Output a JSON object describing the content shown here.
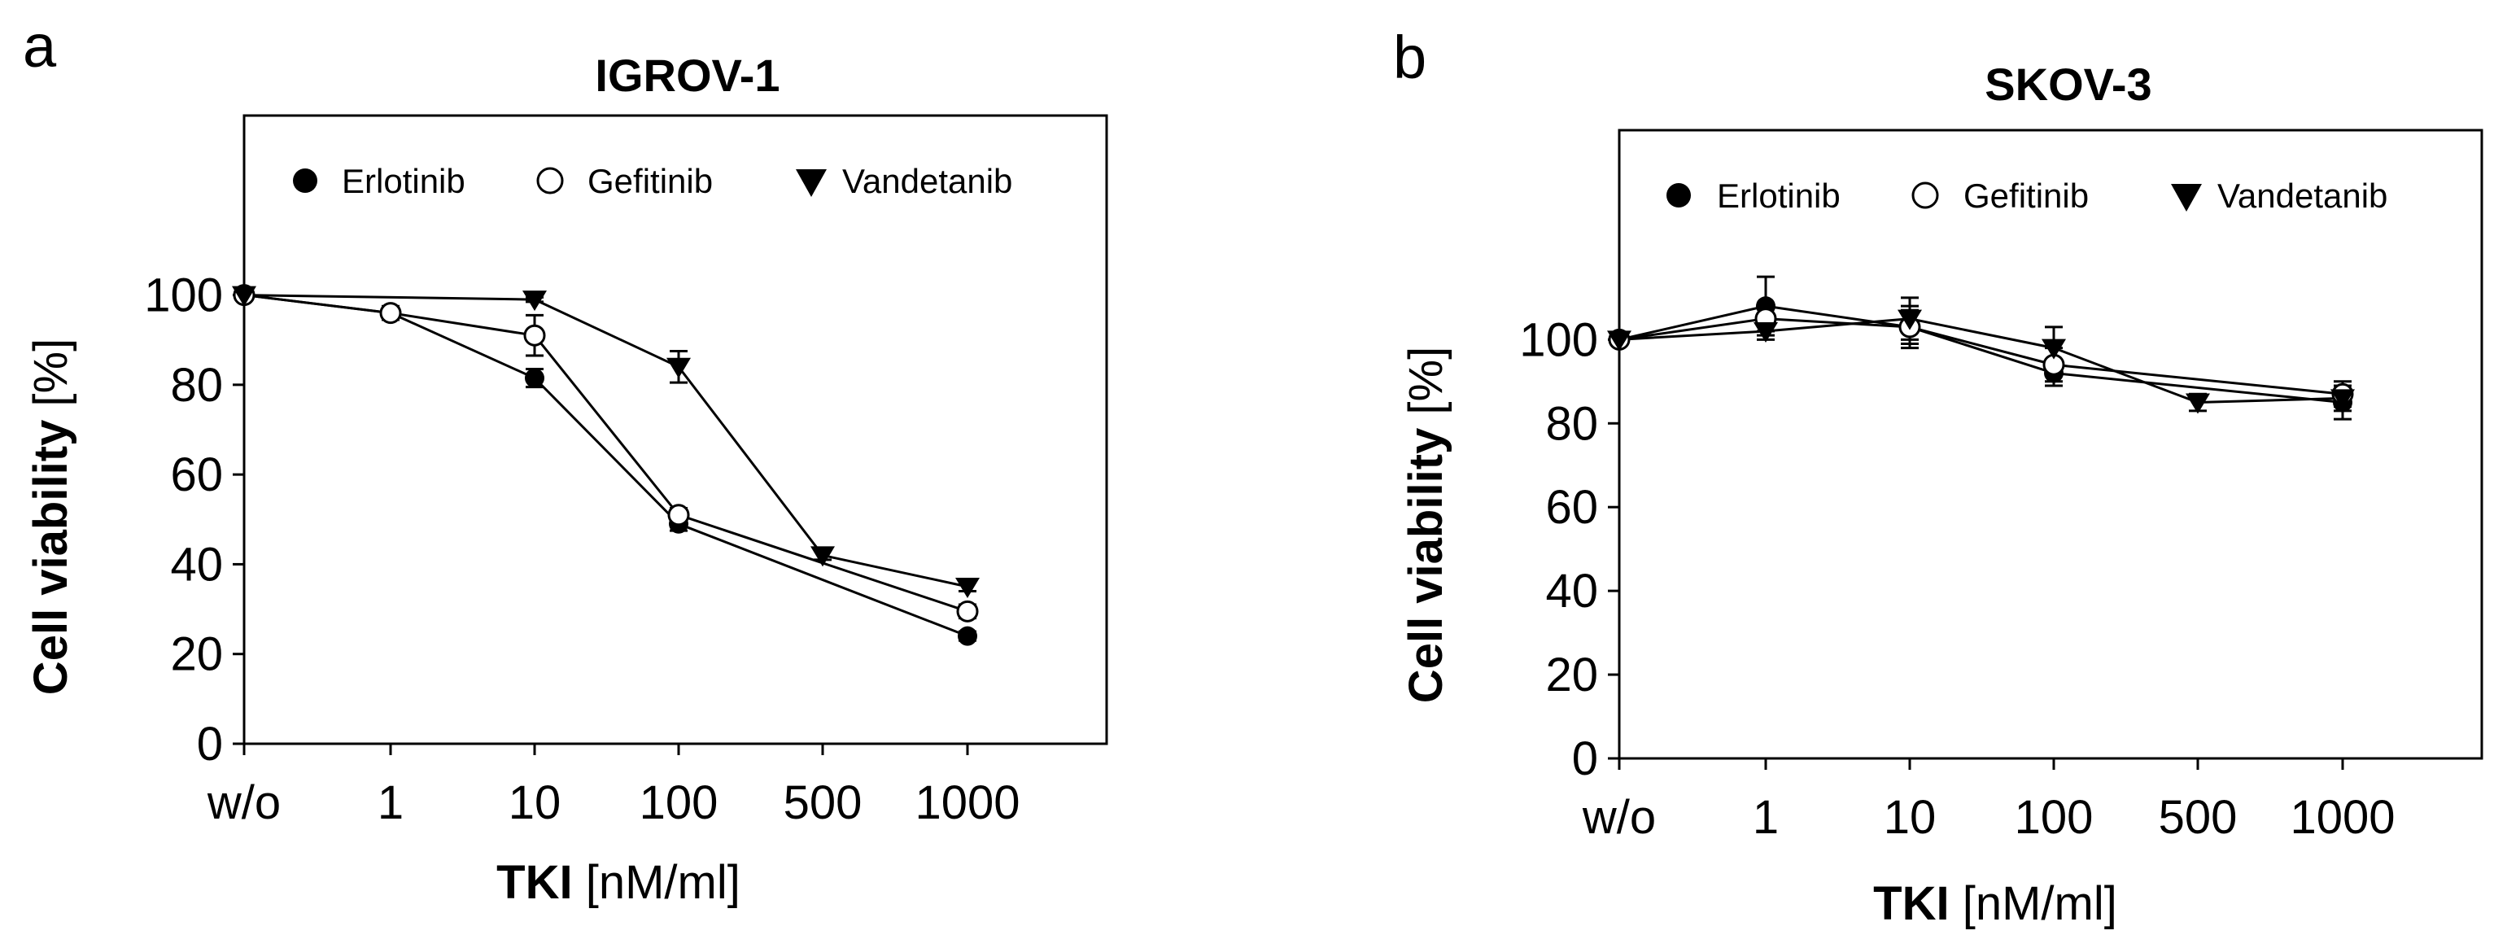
{
  "chart_data": [
    {
      "panel": "a",
      "type": "line",
      "title": "IGROV-1",
      "xlabel_bold": "TKI",
      "xlabel_rest": " [nM/ml]",
      "ylabel_bold": "Cell viability",
      "ylabel_rest": " [%]",
      "categories": [
        "w/o",
        "1",
        "10",
        "100",
        "500",
        "1000"
      ],
      "yticks": [
        0,
        20,
        40,
        60,
        80,
        100
      ],
      "ylim": [
        0,
        140
      ],
      "legend": "top",
      "series": [
        {
          "name": "Erlotinib",
          "marker": "filled-circle",
          "points": [
            [
              0,
              100,
              0
            ],
            [
              1,
              96,
              1.5
            ],
            [
              2,
              81.5,
              2
            ],
            [
              3,
              49,
              1.5
            ],
            [
              5,
              24,
              1
            ]
          ]
        },
        {
          "name": "Gefitinib",
          "marker": "open-circle",
          "points": [
            [
              0,
              100,
              0
            ],
            [
              1,
              96,
              1.5
            ],
            [
              2,
              91,
              4.5
            ],
            [
              3,
              51,
              1.5
            ],
            [
              5,
              29.5,
              1.5
            ]
          ]
        },
        {
          "name": "Vandetanib",
          "marker": "filled-triangle-down",
          "points": [
            [
              0,
              100,
              0
            ],
            [
              2,
              99,
              0.5
            ],
            [
              3,
              84,
              3.5
            ],
            [
              4,
              42,
              1
            ],
            [
              5,
              35,
              1
            ]
          ]
        }
      ]
    },
    {
      "panel": "b",
      "type": "line",
      "title": "SKOV-3",
      "xlabel_bold": "TKI",
      "xlabel_rest": " [nM/ml]",
      "ylabel_bold": "Cell viability",
      "ylabel_rest": " [%]",
      "categories": [
        "w/o",
        "1",
        "10",
        "100",
        "500",
        "1000"
      ],
      "yticks": [
        0,
        20,
        40,
        60,
        80,
        100
      ],
      "ylim": [
        0,
        150
      ],
      "legend": "top",
      "series": [
        {
          "name": "Erlotinib",
          "marker": "filled-circle",
          "points": [
            [
              0,
              100,
              0
            ],
            [
              1,
              108,
              7
            ],
            [
              2,
              103,
              4
            ],
            [
              3,
              92,
              3
            ],
            [
              5,
              85,
              4
            ]
          ]
        },
        {
          "name": "Gefitinib",
          "marker": "open-circle",
          "points": [
            [
              0,
              100,
              0
            ],
            [
              1,
              105,
              3
            ],
            [
              2,
              103,
              5
            ],
            [
              3,
              94,
              4
            ],
            [
              5,
              87,
              3
            ]
          ]
        },
        {
          "name": "Vandetanib",
          "marker": "filled-triangle-down",
          "points": [
            [
              0,
              100,
              0
            ],
            [
              1,
              102,
              2
            ],
            [
              2,
              105,
              5
            ],
            [
              3,
              98,
              5
            ],
            [
              4,
              85,
              2
            ],
            [
              5,
              86,
              3
            ]
          ]
        }
      ]
    }
  ]
}
